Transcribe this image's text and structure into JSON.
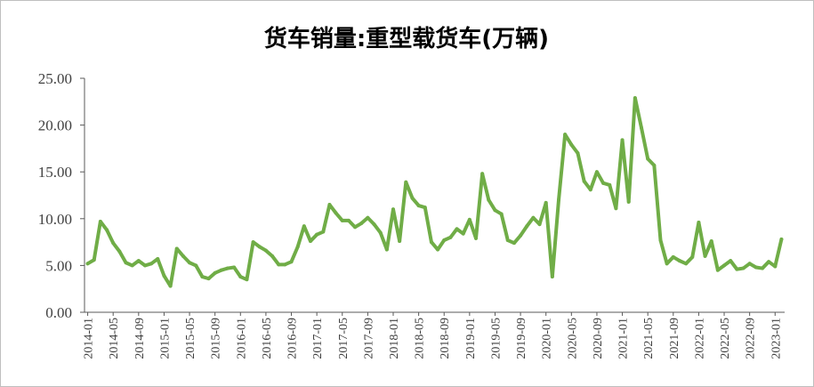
{
  "chart_data": {
    "type": "line",
    "title": "货车销量:重型载货车(万辆)",
    "xlabel": "",
    "ylabel": "",
    "ylim": [
      0,
      25
    ],
    "yticks": [
      "0.00",
      "5.00",
      "10.00",
      "15.00",
      "20.00",
      "25.00"
    ],
    "xticks": [
      "2014-01",
      "2014-05",
      "2014-09",
      "2015-01",
      "2015-05",
      "2015-09",
      "2016-01",
      "2016-05",
      "2016-09",
      "2017-01",
      "2017-05",
      "2017-09",
      "2018-01",
      "2018-05",
      "2018-09",
      "2019-01",
      "2019-05",
      "2019-09",
      "2020-01",
      "2020-05",
      "2020-09",
      "2021-01",
      "2021-05",
      "2021-09",
      "2022-01",
      "2022-05",
      "2022-09",
      "2023-01"
    ],
    "start": "2014-01",
    "grid": false,
    "legend": "none",
    "series": [
      {
        "color": "#70ad47",
        "values": [
          5.2,
          5.6,
          9.7,
          8.8,
          7.4,
          6.5,
          5.3,
          5.0,
          5.5,
          5.0,
          5.2,
          5.7,
          3.9,
          2.8,
          6.8,
          6.0,
          5.3,
          5.0,
          3.8,
          3.6,
          4.2,
          4.5,
          4.7,
          4.8,
          3.8,
          3.5,
          7.5,
          7.0,
          6.6,
          6.0,
          5.1,
          5.1,
          5.4,
          7.0,
          9.2,
          7.6,
          8.3,
          8.6,
          11.5,
          10.6,
          9.8,
          9.8,
          9.1,
          9.5,
          10.1,
          9.4,
          8.5,
          6.7,
          11.0,
          7.6,
          13.9,
          12.2,
          11.4,
          11.2,
          7.5,
          6.7,
          7.7,
          8.0,
          8.9,
          8.4,
          9.9,
          7.9,
          14.8,
          12.0,
          10.9,
          10.5,
          7.7,
          7.4,
          8.2,
          9.2,
          10.1,
          9.4,
          11.7,
          3.8,
          12.0,
          19.0,
          17.9,
          17.0,
          14.0,
          13.1,
          15.0,
          13.8,
          13.6,
          11.1,
          18.4,
          11.8,
          22.9,
          19.7,
          16.4,
          15.7,
          7.7,
          5.2,
          5.9,
          5.5,
          5.2,
          5.9,
          9.6,
          6.0,
          7.6,
          4.5,
          5.0,
          5.5,
          4.6,
          4.7,
          5.2,
          4.8,
          4.7,
          5.4,
          4.9,
          7.8
        ]
      }
    ]
  }
}
